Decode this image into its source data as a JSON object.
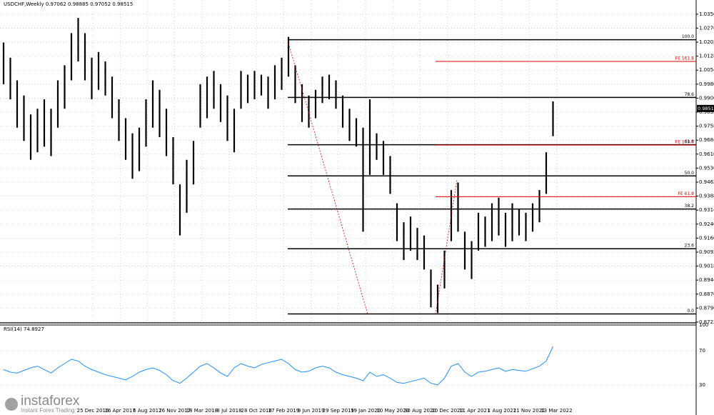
{
  "chart_data": [
    {
      "type": "range-bar",
      "title": "USDCHF,Weekly 0.97062 0.98885 0.97052 0.98515",
      "color": "#000000",
      "low": [
        0.998,
        0.99,
        0.975,
        0.968,
        0.958,
        0.962,
        0.965,
        0.96,
        0.975,
        0.985,
        1.0,
        1.01,
        1.0,
        0.99,
        0.995,
        0.992,
        0.98,
        0.968,
        0.958,
        0.948,
        0.952,
        0.965,
        0.975,
        0.97,
        0.96,
        0.945,
        0.918,
        0.93,
        0.945,
        0.975,
        0.98,
        0.985,
        0.978,
        0.968,
        0.962,
        0.985,
        0.988,
        0.99,
        0.992,
        0.985,
        0.99,
        0.995,
        1.002,
        0.988,
        0.978,
        0.975,
        0.98,
        0.988,
        0.99,
        0.985,
        0.975,
        0.968,
        0.965,
        0.92,
        0.95,
        0.958,
        0.95,
        0.94,
        0.915,
        0.905,
        0.91,
        0.905,
        0.9,
        0.88,
        0.877,
        0.89,
        0.915,
        0.92,
        0.9,
        0.895,
        0.91,
        0.912,
        0.915,
        0.918,
        0.912,
        0.915,
        0.918,
        0.915,
        0.92,
        0.925,
        0.94,
        0.9705
      ],
      "high": [
        1.02,
        1.012,
        1.0,
        0.992,
        0.982,
        0.985,
        0.99,
        0.985,
        1.0,
        1.008,
        1.025,
        1.033,
        1.025,
        1.012,
        1.015,
        1.01,
        1.002,
        0.99,
        0.98,
        0.972,
        0.975,
        0.99,
        1.0,
        0.995,
        0.985,
        0.97,
        0.945,
        0.958,
        0.968,
        0.998,
        1.002,
        1.005,
        0.998,
        0.992,
        0.985,
        1.005,
        1.003,
        1.005,
        1.003,
        1.002,
        1.008,
        1.012,
        1.023,
        1.008,
        0.998,
        0.992,
        0.995,
        1.002,
        1.003,
        1.0,
        0.992,
        0.985,
        0.98,
        0.975,
        0.99,
        0.972,
        0.968,
        0.96,
        0.935,
        0.925,
        0.928,
        0.922,
        0.918,
        0.9,
        0.892,
        0.91,
        0.942,
        0.946,
        0.92,
        0.915,
        0.93,
        0.928,
        0.935,
        0.938,
        0.93,
        0.935,
        0.932,
        0.93,
        0.935,
        0.942,
        0.962,
        0.9889
      ],
      "ylim": [
        0.8718,
        1.0425
      ],
      "yticks": [
        {
          "value": 1.035,
          "label": "1.03500"
        },
        {
          "value": 1.0276,
          "label": "1.02760"
        },
        {
          "value": 1.0202,
          "label": "1.02020"
        },
        {
          "value": 1.0128,
          "label": "1.01280"
        },
        {
          "value": 1.0054,
          "label": "1.00540"
        },
        {
          "value": 0.998,
          "label": "0.99800"
        },
        {
          "value": 0.9906,
          "label": "0.99060"
        },
        {
          "value": 0.9832,
          "label": "0.98320"
        },
        {
          "value": 0.9758,
          "label": "0.97580"
        },
        {
          "value": 0.9684,
          "label": "0.96840"
        },
        {
          "value": 0.961,
          "label": "0.96100"
        },
        {
          "value": 0.9536,
          "label": "0.95360"
        },
        {
          "value": 0.9462,
          "label": "0.94620"
        },
        {
          "value": 0.9388,
          "label": "0.93880"
        },
        {
          "value": 0.9314,
          "label": "0.93140"
        },
        {
          "value": 0.924,
          "label": "0.92400"
        },
        {
          "value": 0.9166,
          "label": "0.91660"
        },
        {
          "value": 0.9092,
          "label": "0.90920"
        },
        {
          "value": 0.9018,
          "label": "0.90180"
        },
        {
          "value": 0.8944,
          "label": "0.89440"
        },
        {
          "value": 0.887,
          "label": "0.88700"
        },
        {
          "value": 0.8796,
          "label": "0.87960"
        },
        {
          "value": 0.8722,
          "label": "0.87220"
        }
      ],
      "xtick_labels": [
        "25 Dec 2016",
        "16 Apr 2017",
        "6 Aug 2017",
        "26 Nov 2017",
        "18 Mar 2018",
        "8 Jul 2018",
        "28 Oct 2018",
        "17 Feb 2019",
        "9 Jun 2019",
        "29 Sep 2019",
        "19 Jan 2020",
        "10 May 2020",
        "30 Aug 2020",
        "20 Dec 2020",
        "11 Apr 2021",
        "1 Aug 2021",
        "21 Nov 2021",
        "13 Mar 2022"
      ],
      "last_price": {
        "value": 0.98515,
        "label": "0.98515"
      },
      "fib_color": "#000000",
      "fib_levels": [
        {
          "value": 1.0215,
          "label": "100.0"
        },
        {
          "value": 0.991,
          "label": "78.6"
        },
        {
          "value": 0.966,
          "label": "61.8"
        },
        {
          "value": 0.9495,
          "label": "50.0"
        },
        {
          "value": 0.932,
          "label": "38.2"
        },
        {
          "value": 0.911,
          "label": "23.6"
        },
        {
          "value": 0.8765,
          "label": "0.0"
        }
      ],
      "fe_color": "#e00000",
      "fe_levels": [
        {
          "value": 1.01,
          "label": "FE 161.8"
        },
        {
          "value": 0.9658,
          "label": "FE 100.0"
        },
        {
          "value": 0.9385,
          "label": "FE 61.8"
        }
      ],
      "grid": true
    },
    {
      "type": "line",
      "title": "RSI(14) 74.8927",
      "color": "#1e90ff",
      "values": [
        48,
        45,
        44,
        47,
        50,
        52,
        48,
        44,
        50,
        55,
        60,
        58,
        52,
        48,
        45,
        42,
        40,
        38,
        36,
        40,
        45,
        48,
        50,
        47,
        42,
        35,
        32,
        38,
        45,
        52,
        55,
        50,
        44,
        40,
        50,
        55,
        52,
        50,
        54,
        56,
        58,
        60,
        55,
        48,
        45,
        46,
        50,
        52,
        50,
        45,
        42,
        40,
        38,
        35,
        45,
        40,
        42,
        38,
        33,
        32,
        34,
        36,
        38,
        32,
        30,
        38,
        52,
        55,
        45,
        40,
        45,
        46,
        48,
        50,
        46,
        48,
        47,
        46,
        49,
        52,
        58,
        75
      ],
      "ylim": [
        0,
        100
      ],
      "yticks": [
        30,
        70,
        100
      ]
    }
  ],
  "branding": {
    "name": "instaforex",
    "tagline": "Instant Forex Trading"
  }
}
